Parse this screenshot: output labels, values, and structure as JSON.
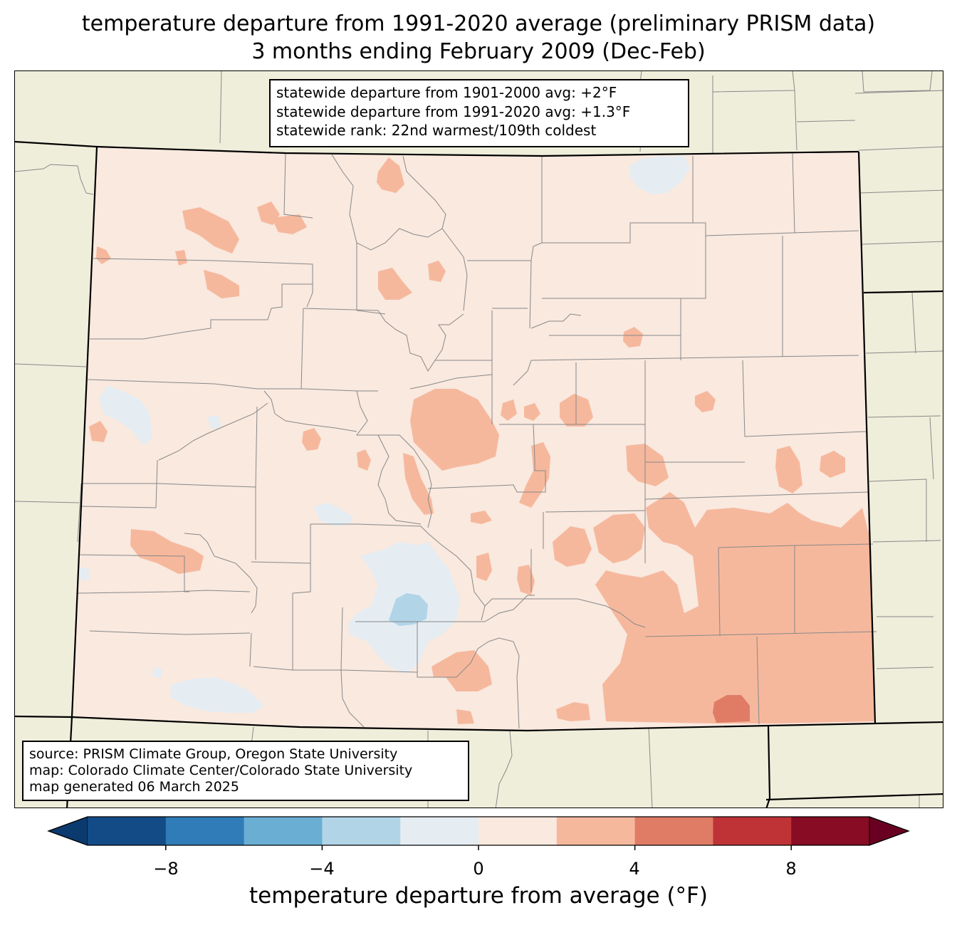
{
  "title": {
    "line1": "temperature departure from 1991-2020 average (preliminary PRISM data)",
    "line2": "3 months ending February 2009 (Dec-Feb)"
  },
  "stats": {
    "line1": "statewide departure from 1901-2000 avg: +2°F",
    "line2": "statewide departure from 1991-2020 avg: +1.3°F",
    "line3": "statewide rank: 22nd warmest/109th coldest"
  },
  "source": {
    "line1": "source: PRISM Climate Group, Oregon State University",
    "line2": "map: Colorado Climate Center/Colorado State University",
    "line3": "map generated 06 March 2025"
  },
  "colorbar": {
    "title": "temperature departure from average (°F)",
    "tick_labels": [
      "−8",
      "−4",
      "0",
      "4",
      "8"
    ],
    "tick_values": [
      -8,
      -4,
      0,
      4,
      8
    ],
    "range": [
      -10,
      10
    ],
    "step": 2,
    "extend": "both",
    "colors": [
      "#0b3a6e",
      "#134b87",
      "#2f7cb8",
      "#6aaed3",
      "#b1d4e7",
      "#e5edf3",
      "#f9e9df",
      "#f6b89d",
      "#e07c66",
      "#bf3337",
      "#880c23",
      "#6a0021"
    ]
  },
  "map_colors": {
    "land": "#efeedb",
    "anomaly_0_to_2": "#f9e9df",
    "anomaly_2_to_4": "#f6b89d",
    "anomaly_4_to_6": "#e07c66",
    "anomaly_neg2_to_0": "#e5edf3",
    "anomaly_neg4_to_neg2": "#b1d4e7",
    "county_lines": "#888888",
    "state_lines": "#000000"
  }
}
